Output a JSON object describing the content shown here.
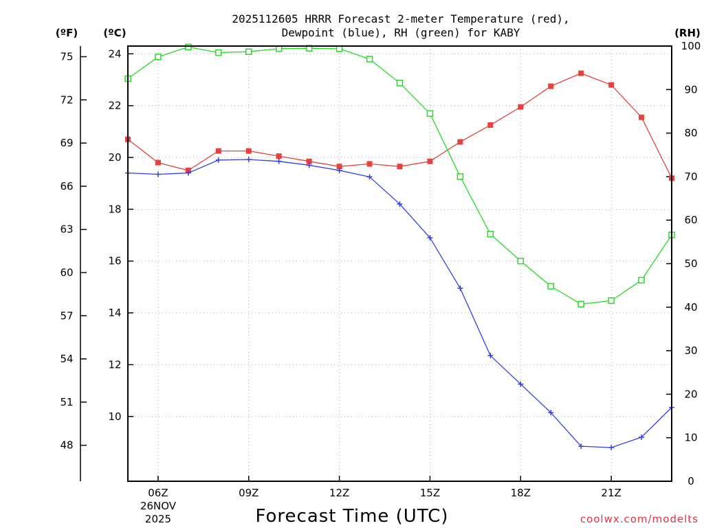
{
  "chart_data": {
    "type": "line",
    "title_line1": "2025112605 HRRR Forecast 2-meter Temperature (red),",
    "title_line2": "Dewpoint (blue), RH (green) for KABY",
    "xlabel": "Forecast Time (UTC)",
    "credit": "coolwx.com/modelts",
    "date_label_1": "26NOV",
    "date_label_2": "2025",
    "unit_f": "(ºF)",
    "unit_c": "(ºC)",
    "unit_rh": "(RH)",
    "x_hours": [
      5,
      6,
      7,
      8,
      9,
      10,
      11,
      12,
      13,
      14,
      15,
      16,
      17,
      18,
      19,
      20,
      21,
      22,
      23
    ],
    "x_range": [
      5,
      23
    ],
    "x_ticks": [
      {
        "hour": 6,
        "label": "06Z"
      },
      {
        "hour": 9,
        "label": "09Z"
      },
      {
        "hour": 12,
        "label": "12Z"
      },
      {
        "hour": 15,
        "label": "15Z"
      },
      {
        "hour": 18,
        "label": "18Z"
      },
      {
        "hour": 21,
        "label": "21Z"
      }
    ],
    "celsius_range": [
      7.5,
      24.3
    ],
    "celsius_ticks": [
      "10",
      "12",
      "14",
      "16",
      "18",
      "20",
      "22",
      "24"
    ],
    "fahrenheit_ticks": [
      "48",
      "51",
      "54",
      "57",
      "60",
      "63",
      "66",
      "69",
      "72",
      "75"
    ],
    "rh_range": [
      0,
      100
    ],
    "rh_ticks": [
      "0",
      "10",
      "20",
      "30",
      "40",
      "50",
      "60",
      "70",
      "80",
      "90",
      "100"
    ],
    "series": [
      {
        "name": "Temperature",
        "color": "#e8403c",
        "marker": "filled-square",
        "values": [
          20.7,
          19.8,
          19.5,
          20.25,
          20.25,
          20.05,
          19.85,
          19.65,
          19.75,
          19.65,
          19.85,
          20.6,
          21.25,
          21.95,
          22.75,
          23.25,
          22.8,
          21.55,
          19.2
        ]
      },
      {
        "name": "Dewpoint",
        "color": "#3040e8",
        "marker": "plus",
        "values": [
          19.4,
          19.35,
          19.4,
          19.9,
          19.92,
          19.85,
          19.7,
          19.5,
          19.25,
          18.2,
          16.9,
          14.95,
          12.35,
          11.25,
          10.15,
          8.85,
          8.8,
          9.2,
          10.35
        ]
      },
      {
        "name": "RH",
        "color": "#22dd22",
        "marker": "open-square",
        "values": [
          92.5,
          97.5,
          99.8,
          98.5,
          98.7,
          99.4,
          99.5,
          99.4,
          97.0,
          91.5,
          84.5,
          70.0,
          56.8,
          50.6,
          44.8,
          40.7,
          41.5,
          46.2,
          56.6
        ]
      }
    ]
  }
}
